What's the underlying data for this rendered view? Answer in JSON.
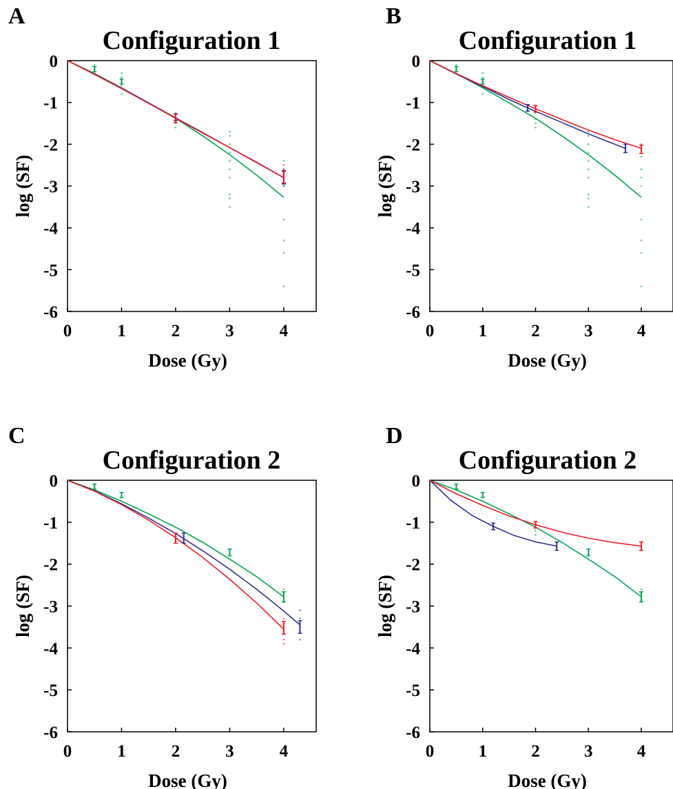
{
  "figure": {
    "colors": {
      "green": "#00a651",
      "blue": "#2e3192",
      "red": "#ed1c24",
      "axis": "#000000"
    }
  },
  "chart_data": [
    {
      "panel_label": "A",
      "type": "line",
      "title": "Configuration 1",
      "xlabel": "Dose (Gy)",
      "ylabel": "log (SF)",
      "xlim": [
        0,
        4.6
      ],
      "ylim": [
        -6,
        0
      ],
      "xticks": [
        0,
        1,
        2,
        3,
        4
      ],
      "yticks": [
        0,
        -1,
        -2,
        -3,
        -4,
        -5,
        -6
      ],
      "grid": false,
      "series": [
        {
          "color": "green",
          "x": [
            0,
            0.5,
            1,
            1.5,
            2,
            2.5,
            3,
            3.5,
            4
          ],
          "y": [
            0,
            -0.31,
            -0.65,
            -1.01,
            -1.38,
            -1.8,
            -2.25,
            -2.74,
            -3.27
          ]
        },
        {
          "color": "blue",
          "x": [
            0,
            0.5,
            1,
            1.5,
            2,
            2.5,
            3,
            3.5,
            4
          ],
          "y": [
            0,
            -0.32,
            -0.66,
            -1.01,
            -1.37,
            -1.72,
            -2.08,
            -2.43,
            -2.8
          ]
        },
        {
          "color": "red",
          "x": [
            0,
            0.5,
            1,
            1.5,
            2,
            2.5,
            3,
            3.5,
            4
          ],
          "y": [
            0,
            -0.33,
            -0.67,
            -1.02,
            -1.38,
            -1.73,
            -2.08,
            -2.44,
            -2.8
          ]
        }
      ],
      "error_bars": [
        {
          "color": "green",
          "x": 0.5,
          "y": -0.2,
          "err": 0.06
        },
        {
          "color": "green",
          "x": 1,
          "y": -0.5,
          "err": 0.06
        },
        {
          "color": "blue",
          "x": 2,
          "y": -1.35,
          "err": 0.08
        },
        {
          "color": "red",
          "x": 2,
          "y": -1.38,
          "err": 0.1
        },
        {
          "color": "blue",
          "x": 4,
          "y": -2.8,
          "err": 0.15
        },
        {
          "color": "red",
          "x": 4,
          "y": -2.78,
          "err": 0.15
        }
      ],
      "points": [
        {
          "color": "green",
          "x": 0.5,
          "y": [
            -0.1,
            -0.15,
            -0.2,
            -0.25,
            -0.3
          ]
        },
        {
          "color": "green",
          "x": 1,
          "y": [
            -0.3,
            -0.4,
            -0.5,
            -0.6,
            -0.8
          ]
        },
        {
          "color": "green",
          "x": 2,
          "y": [
            -1.25,
            -1.4,
            -1.5,
            -1.6
          ]
        },
        {
          "color": "green",
          "x": 3,
          "y": [
            -1.7,
            -1.8,
            -2.0,
            -2.2,
            -2.4,
            -2.6,
            -2.8,
            -3.2,
            -3.3,
            -3.5
          ]
        },
        {
          "color": "green",
          "x": 4,
          "y": [
            -2.4,
            -2.6,
            -2.8,
            -3.0,
            -3.8,
            -4.3,
            -4.6,
            -5.4
          ]
        },
        {
          "color": "blue",
          "x": 4,
          "y": [
            -2.6,
            -2.7,
            -2.9,
            -3.0
          ]
        },
        {
          "color": "red",
          "x": 4,
          "y": [
            -2.5,
            -2.7,
            -2.9
          ]
        }
      ]
    },
    {
      "panel_label": "B",
      "type": "line",
      "title": "Configuration 1",
      "xlabel": "Dose (Gy)",
      "ylabel": "log (SF)",
      "xlim": [
        0,
        4.6
      ],
      "ylim": [
        -6,
        0
      ],
      "xticks": [
        0,
        1,
        2,
        3,
        4
      ],
      "yticks": [
        0,
        -1,
        -2,
        -3,
        -4,
        -5,
        -6
      ],
      "grid": false,
      "series": [
        {
          "color": "green",
          "x": [
            0,
            0.5,
            1,
            1.5,
            2,
            2.5,
            3,
            3.5,
            4
          ],
          "y": [
            0,
            -0.31,
            -0.65,
            -1.01,
            -1.38,
            -1.8,
            -2.25,
            -2.74,
            -3.27
          ]
        },
        {
          "color": "blue",
          "x": [
            0,
            0.5,
            1,
            1.5,
            1.85,
            2.5,
            3,
            3.7
          ],
          "y": [
            0,
            -0.32,
            -0.62,
            -0.93,
            -1.13,
            -1.48,
            -1.75,
            -2.1
          ]
        },
        {
          "color": "red",
          "x": [
            0,
            0.5,
            1,
            1.5,
            2,
            2.5,
            3,
            3.5,
            4
          ],
          "y": [
            0,
            -0.31,
            -0.6,
            -0.88,
            -1.15,
            -1.41,
            -1.66,
            -1.89,
            -2.1
          ]
        }
      ],
      "error_bars": [
        {
          "color": "green",
          "x": 0.5,
          "y": -0.2,
          "err": 0.06
        },
        {
          "color": "green",
          "x": 1,
          "y": -0.5,
          "err": 0.06
        },
        {
          "color": "blue",
          "x": 1.85,
          "y": -1.13,
          "err": 0.08
        },
        {
          "color": "red",
          "x": 2,
          "y": -1.15,
          "err": 0.08
        },
        {
          "color": "blue",
          "x": 3.7,
          "y": -2.1,
          "err": 0.1
        },
        {
          "color": "red",
          "x": 4,
          "y": -2.12,
          "err": 0.1
        }
      ],
      "points": [
        {
          "color": "green",
          "x": 0.5,
          "y": [
            -0.1,
            -0.15,
            -0.2,
            -0.25,
            -0.3
          ]
        },
        {
          "color": "green",
          "x": 1,
          "y": [
            -0.3,
            -0.4,
            -0.5,
            -0.6,
            -0.8
          ]
        },
        {
          "color": "green",
          "x": 2,
          "y": [
            -1.25,
            -1.4,
            -1.5,
            -1.6
          ]
        },
        {
          "color": "green",
          "x": 3,
          "y": [
            -1.7,
            -1.8,
            -2.0,
            -2.2,
            -2.4,
            -2.6,
            -2.8,
            -3.2,
            -3.3,
            -3.5
          ]
        },
        {
          "color": "green",
          "x": 4,
          "y": [
            -2.0,
            -2.3,
            -2.6,
            -2.8,
            -3.0,
            -3.8,
            -4.3,
            -4.6,
            -5.4
          ]
        }
      ]
    },
    {
      "panel_label": "C",
      "type": "line",
      "title": "Configuration 2",
      "xlabel": "Dose (Gy)",
      "ylabel": "log (SF)",
      "xlim": [
        0,
        4.6
      ],
      "ylim": [
        -6,
        0
      ],
      "xticks": [
        0,
        1,
        2,
        3,
        4
      ],
      "yticks": [
        0,
        -1,
        -2,
        -3,
        -4,
        -5,
        -6
      ],
      "grid": false,
      "series": [
        {
          "color": "green",
          "x": [
            0,
            0.5,
            1,
            1.5,
            2,
            2.5,
            3,
            3.5,
            4
          ],
          "y": [
            0,
            -0.23,
            -0.5,
            -0.8,
            -1.12,
            -1.48,
            -1.88,
            -2.3,
            -2.78
          ]
        },
        {
          "color": "blue",
          "x": [
            0,
            0.5,
            1,
            1.5,
            2,
            2.5,
            3,
            3.5,
            4,
            4.3
          ],
          "y": [
            0,
            -0.25,
            -0.56,
            -0.9,
            -1.27,
            -1.68,
            -2.12,
            -2.6,
            -3.12,
            -3.45
          ]
        },
        {
          "color": "red",
          "x": [
            0,
            0.5,
            1,
            1.5,
            2,
            2.5,
            3,
            3.5,
            4
          ],
          "y": [
            0,
            -0.26,
            -0.58,
            -0.95,
            -1.37,
            -1.84,
            -2.36,
            -2.93,
            -3.55
          ]
        }
      ],
      "error_bars": [
        {
          "color": "green",
          "x": 0.5,
          "y": -0.15,
          "err": 0.06
        },
        {
          "color": "green",
          "x": 1,
          "y": -0.35,
          "err": 0.06
        },
        {
          "color": "red",
          "x": 2,
          "y": -1.38,
          "err": 0.12
        },
        {
          "color": "blue",
          "x": 2.15,
          "y": -1.38,
          "err": 0.12
        },
        {
          "color": "green",
          "x": 3,
          "y": -1.72,
          "err": 0.08
        },
        {
          "color": "green",
          "x": 4,
          "y": -2.78,
          "err": 0.12
        },
        {
          "color": "red",
          "x": 4,
          "y": -3.52,
          "err": 0.15
        },
        {
          "color": "blue",
          "x": 4.3,
          "y": -3.5,
          "err": 0.15
        }
      ],
      "points": [
        {
          "color": "green",
          "x": 4,
          "y": [
            -2.6,
            -2.7,
            -2.9
          ]
        },
        {
          "color": "red",
          "x": 4,
          "y": [
            -3.3,
            -3.6,
            -3.8,
            -3.9
          ]
        },
        {
          "color": "blue",
          "x": 4.3,
          "y": [
            -3.1,
            -3.3,
            -3.6,
            -3.8
          ]
        }
      ]
    },
    {
      "panel_label": "D",
      "type": "line",
      "title": "Configuration 2",
      "xlabel": "Dose (Gy)",
      "ylabel": "log (SF)",
      "xlim": [
        0,
        4.6
      ],
      "ylim": [
        -6,
        0
      ],
      "xticks": [
        0,
        1,
        2,
        3,
        4
      ],
      "yticks": [
        0,
        -1,
        -2,
        -3,
        -4,
        -5,
        -6
      ],
      "grid": false,
      "series": [
        {
          "color": "green",
          "x": [
            0,
            0.5,
            1,
            1.5,
            2,
            2.5,
            3,
            3.5,
            4
          ],
          "y": [
            0,
            -0.23,
            -0.5,
            -0.8,
            -1.12,
            -1.48,
            -1.88,
            -2.3,
            -2.78
          ]
        },
        {
          "color": "blue",
          "x": [
            0,
            0.4,
            0.8,
            1.2,
            1.6,
            2.0,
            2.4
          ],
          "y": [
            0,
            -0.48,
            -0.84,
            -1.1,
            -1.32,
            -1.47,
            -1.57
          ]
        },
        {
          "color": "red",
          "x": [
            0,
            0.5,
            1,
            1.5,
            2,
            2.5,
            3,
            3.5,
            4
          ],
          "y": [
            0,
            -0.32,
            -0.6,
            -0.85,
            -1.06,
            -1.24,
            -1.38,
            -1.49,
            -1.57
          ]
        }
      ],
      "error_bars": [
        {
          "color": "green",
          "x": 0.5,
          "y": -0.15,
          "err": 0.06
        },
        {
          "color": "green",
          "x": 1,
          "y": -0.35,
          "err": 0.06
        },
        {
          "color": "blue",
          "x": 1.2,
          "y": -1.1,
          "err": 0.08
        },
        {
          "color": "red",
          "x": 2,
          "y": -1.06,
          "err": 0.08
        },
        {
          "color": "blue",
          "x": 2.4,
          "y": -1.57,
          "err": 0.1
        },
        {
          "color": "green",
          "x": 3,
          "y": -1.72,
          "err": 0.08
        },
        {
          "color": "red",
          "x": 4,
          "y": -1.57,
          "err": 0.1
        },
        {
          "color": "green",
          "x": 4,
          "y": -2.78,
          "err": 0.12
        }
      ],
      "points": [
        {
          "color": "green",
          "x": 2,
          "y": [
            -1.1,
            -1.2,
            -1.3
          ]
        },
        {
          "color": "green",
          "x": 4,
          "y": [
            -2.6,
            -2.7,
            -2.85,
            -2.9
          ]
        }
      ]
    }
  ]
}
